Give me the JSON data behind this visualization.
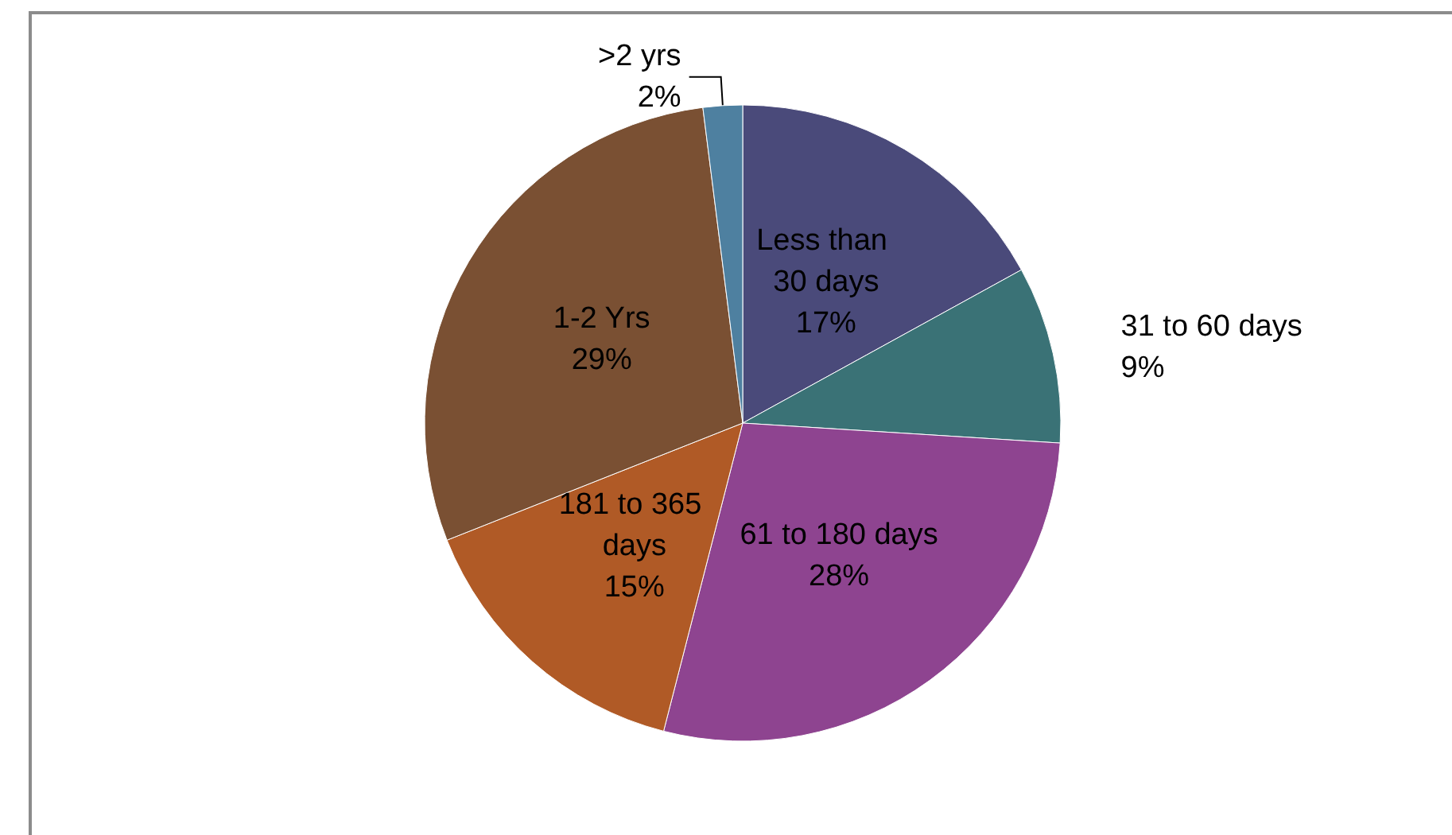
{
  "chart_data": {
    "type": "pie",
    "categories": [
      "Less than 30 days",
      "31 to 60 days",
      "61 to 180 days",
      "181 to 365 days",
      "1-2 Yrs",
      ">2 yrs"
    ],
    "values": [
      17,
      9,
      28,
      15,
      29,
      2
    ],
    "colors": [
      "#4a4a7a",
      "#3a7276",
      "#8e4490",
      "#b05a26",
      "#7a5033",
      "#4e80a0"
    ],
    "value_labels": [
      "17%",
      "9%",
      "28%",
      "15%",
      "29%",
      "2%"
    ],
    "legend": false
  }
}
